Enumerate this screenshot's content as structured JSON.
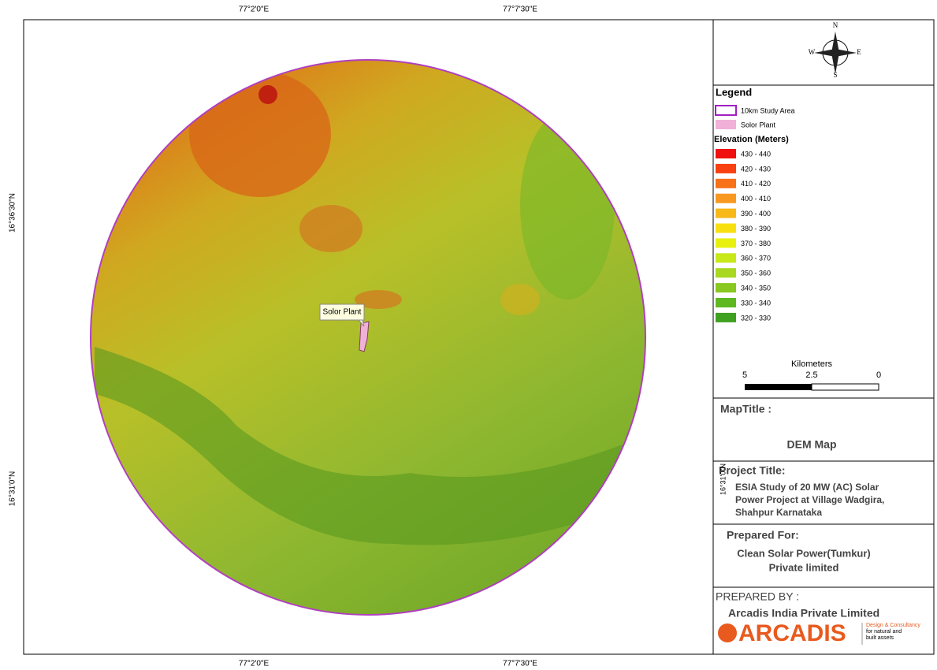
{
  "coordinates": {
    "top": [
      "77°2'0\"E",
      "77°7'30\"E"
    ],
    "bottom": [
      "77°2'0\"E",
      "77°7'30\"E"
    ],
    "left": [
      "16°36'30\"N",
      "16°31'0\"N"
    ],
    "stray": "16°31'0\"N"
  },
  "map": {
    "plant_label": "Solor Plant"
  },
  "north_arrow": {
    "n": "N",
    "e": "E",
    "s": "S",
    "w": "W"
  },
  "legend": {
    "title": "Legend",
    "study_area": {
      "label": "10km Study Area",
      "color": "#a020c0"
    },
    "plant": {
      "label": "Solor Plant",
      "color": "#f0b0d8"
    },
    "elevation_title": "Elevation (Meters)",
    "classes": [
      {
        "label": "430 - 440",
        "color": "#f01010"
      },
      {
        "label": "420 - 430",
        "color": "#f84010"
      },
      {
        "label": "410 - 420",
        "color": "#f87018"
      },
      {
        "label": "400 - 410",
        "color": "#f89820"
      },
      {
        "label": "390 - 400",
        "color": "#f8b818"
      },
      {
        "label": "380 - 390",
        "color": "#f8e010"
      },
      {
        "label": "370 - 380",
        "color": "#e8f010"
      },
      {
        "label": "360 - 370",
        "color": "#c8e818"
      },
      {
        "label": "350 - 360",
        "color": "#a8d820"
      },
      {
        "label": "340 - 350",
        "color": "#88c820"
      },
      {
        "label": "330 - 340",
        "color": "#60b820"
      },
      {
        "label": "320 - 330",
        "color": "#40a020"
      }
    ]
  },
  "scale": {
    "unit": "Kilometers",
    "labels": [
      "5",
      "2.5",
      "0"
    ]
  },
  "map_title": {
    "heading": "MapTitle :",
    "text": "DEM Map"
  },
  "project": {
    "heading": "Project Title:",
    "lines": [
      "ESIA Study of 20 MW (AC) Solar",
      "Power Project at Village Wadgira,",
      "Shahpur  Karnataka"
    ]
  },
  "prepared_for": {
    "heading": "Prepared For:",
    "lines": [
      "Clean Solar Power(Tumkur)",
      "Private limited"
    ]
  },
  "prepared_by": {
    "heading": "PREPARED BY :",
    "company": "Arcadis India Private Limited",
    "logo": "ARCADIS",
    "tagline": [
      "Design & Consultancy",
      "for natural and",
      "built assets"
    ]
  }
}
